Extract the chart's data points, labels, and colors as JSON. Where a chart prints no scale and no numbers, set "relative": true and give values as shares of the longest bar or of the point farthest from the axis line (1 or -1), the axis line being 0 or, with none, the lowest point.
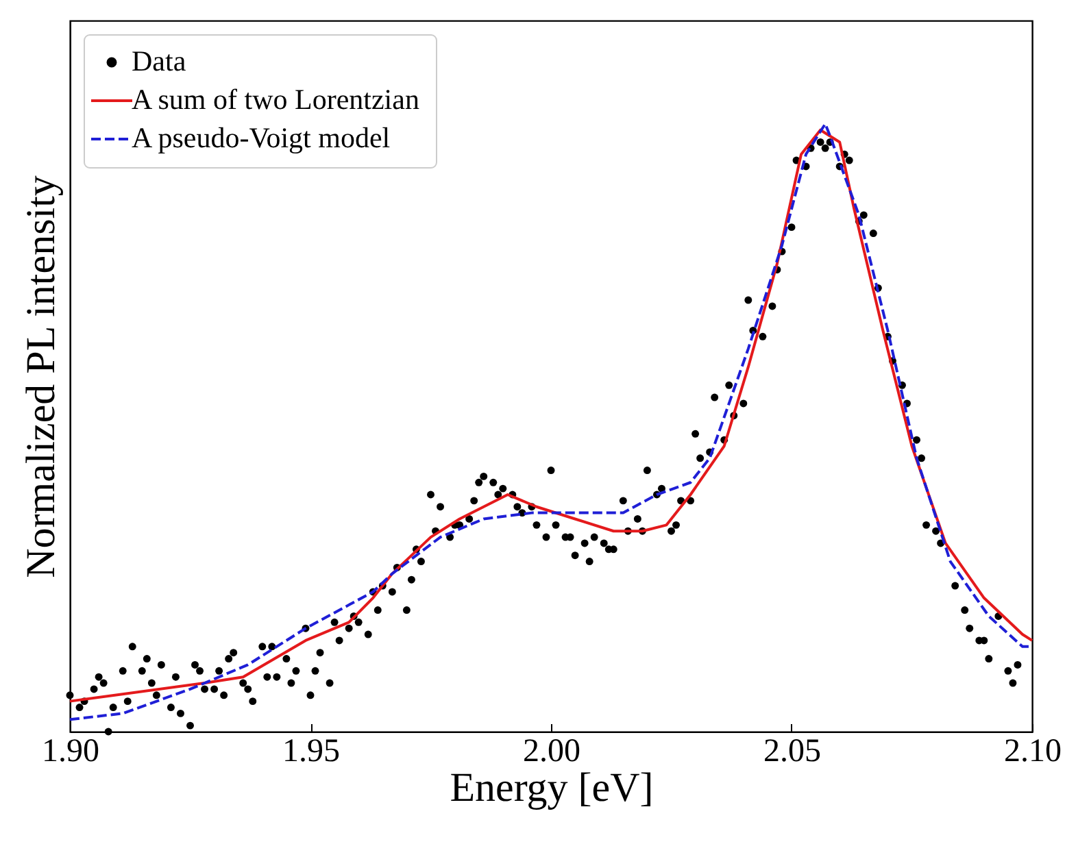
{
  "chart_data": {
    "type": "scatter",
    "relative": true,
    "xlabel": "Energy [eV]",
    "ylabel": "Normalized PL intensity",
    "xlim": [
      1.9,
      2.1
    ],
    "xticks": [
      {
        "value": 1.9,
        "label": "1.90"
      },
      1.95,
      {
        "value": 2.0,
        "label": "2.00"
      },
      2.05,
      {
        "value": 2.1,
        "label": "2.10"
      }
    ],
    "grid": false,
    "legend": "top left",
    "series": [
      {
        "name": "Data",
        "type": "scatter",
        "marker": "circle",
        "color": "#000000",
        "x": [
          1.9,
          1.902,
          1.903,
          1.905,
          1.906,
          1.907,
          1.908,
          1.909,
          1.911,
          1.912,
          1.913,
          1.915,
          1.916,
          1.917,
          1.918,
          1.919,
          1.921,
          1.922,
          1.923,
          1.925,
          1.926,
          1.927,
          1.928,
          1.93,
          1.931,
          1.932,
          1.933,
          1.934,
          1.936,
          1.937,
          1.938,
          1.94,
          1.941,
          1.942,
          1.943,
          1.945,
          1.946,
          1.947,
          1.949,
          1.95,
          1.951,
          1.952,
          1.954,
          1.955,
          1.956,
          1.958,
          1.959,
          1.96,
          1.962,
          1.963,
          1.964,
          1.965,
          1.967,
          1.968,
          1.97,
          1.971,
          1.972,
          1.973,
          1.975,
          1.976,
          1.977,
          1.979,
          1.98,
          1.981,
          1.983,
          1.984,
          1.985,
          1.986,
          1.988,
          1.989,
          1.99,
          1.992,
          1.993,
          1.994,
          1.996,
          1.997,
          1.999,
          2.0,
          2.001,
          2.003,
          2.004,
          2.005,
          2.007,
          2.008,
          2.009,
          2.011,
          2.012,
          2.013,
          2.015,
          2.016,
          2.018,
          2.019,
          2.02,
          2.022,
          2.023,
          2.025,
          2.026,
          2.027,
          2.029,
          2.03,
          2.031,
          2.033,
          2.034,
          2.036,
          2.037,
          2.038,
          2.04,
          2.041,
          2.042,
          2.044,
          2.046,
          2.047,
          2.048,
          2.05,
          2.051,
          2.053,
          2.054,
          2.056,
          2.057,
          2.058,
          2.06,
          2.061,
          2.062,
          2.064,
          2.065,
          2.067,
          2.068,
          2.07,
          2.071,
          2.073,
          2.074,
          2.076,
          2.077,
          2.078,
          2.08,
          2.081,
          2.084,
          2.086,
          2.087,
          2.089,
          2.09,
          2.091,
          2.093,
          2.095,
          2.096,
          2.097
        ],
        "values": [
          0.06,
          0.04,
          0.05,
          0.07,
          0.09,
          0.08,
          0.0,
          0.04,
          0.1,
          0.05,
          0.14,
          0.1,
          0.12,
          0.08,
          0.06,
          0.11,
          0.04,
          0.09,
          0.03,
          0.01,
          0.11,
          0.1,
          0.07,
          0.07,
          0.1,
          0.06,
          0.12,
          0.13,
          0.08,
          0.07,
          0.05,
          0.14,
          0.09,
          0.14,
          0.09,
          0.12,
          0.08,
          0.1,
          0.17,
          0.06,
          0.1,
          0.13,
          0.08,
          0.18,
          0.15,
          0.17,
          0.19,
          0.18,
          0.16,
          0.23,
          0.2,
          0.24,
          0.23,
          0.27,
          0.2,
          0.25,
          0.3,
          0.28,
          0.39,
          0.33,
          0.37,
          0.32,
          0.34,
          0.34,
          0.35,
          0.38,
          0.41,
          0.42,
          0.41,
          0.39,
          0.4,
          0.39,
          0.37,
          0.36,
          0.37,
          0.34,
          0.32,
          0.43,
          0.34,
          0.32,
          0.32,
          0.29,
          0.31,
          0.28,
          0.32,
          0.31,
          0.3,
          0.3,
          0.38,
          0.33,
          0.35,
          0.33,
          0.43,
          0.39,
          0.4,
          0.33,
          0.34,
          0.38,
          0.38,
          0.49,
          0.45,
          0.46,
          0.55,
          0.48,
          0.57,
          0.52,
          0.54,
          0.71,
          0.66,
          0.65,
          0.7,
          0.76,
          0.79,
          0.83,
          0.94,
          0.93,
          0.96,
          0.97,
          0.96,
          0.97,
          0.93,
          0.95,
          0.94,
          0.84,
          0.85,
          0.82,
          0.73,
          0.65,
          0.61,
          0.57,
          0.54,
          0.48,
          0.45,
          0.34,
          0.33,
          0.31,
          0.24,
          0.2,
          0.17,
          0.15,
          0.15,
          0.12,
          0.19,
          0.1,
          0.08,
          0.11
        ]
      },
      {
        "name": "A sum of two Lorentzian",
        "type": "line",
        "line_style": "solid",
        "color": "#e41a1c",
        "x": [
          1.9,
          1.928,
          1.936,
          1.949,
          1.958,
          1.963,
          1.967,
          1.975,
          1.981,
          1.991,
          1.997,
          2.005,
          2.013,
          2.019,
          2.024,
          2.029,
          2.036,
          2.041,
          2.047,
          2.052,
          2.056,
          2.06,
          2.063,
          2.069,
          2.075,
          2.082,
          2.09,
          2.098,
          2.1
        ],
        "values": [
          0.05,
          0.08,
          0.09,
          0.15,
          0.18,
          0.22,
          0.26,
          0.32,
          0.35,
          0.39,
          0.37,
          0.35,
          0.33,
          0.33,
          0.34,
          0.39,
          0.47,
          0.6,
          0.77,
          0.95,
          0.99,
          0.97,
          0.86,
          0.66,
          0.47,
          0.31,
          0.22,
          0.16,
          0.15
        ]
      },
      {
        "name": "A pseudo-Voigt model",
        "type": "line",
        "line_style": "dashed",
        "color": "#1f1fd6",
        "x": [
          1.9,
          1.911,
          1.925,
          1.937,
          1.949,
          1.963,
          1.967,
          1.977,
          1.986,
          1.996,
          2.005,
          2.015,
          2.022,
          2.029,
          2.033,
          2.041,
          2.048,
          2.053,
          2.057,
          2.058,
          2.064,
          2.07,
          2.076,
          2.083,
          2.091,
          2.098,
          2.1
        ],
        "values": [
          0.02,
          0.03,
          0.07,
          0.11,
          0.17,
          0.23,
          0.26,
          0.32,
          0.35,
          0.36,
          0.36,
          0.36,
          0.39,
          0.41,
          0.45,
          0.63,
          0.8,
          0.95,
          1.0,
          0.98,
          0.85,
          0.66,
          0.45,
          0.28,
          0.19,
          0.14,
          0.14
        ]
      }
    ]
  }
}
